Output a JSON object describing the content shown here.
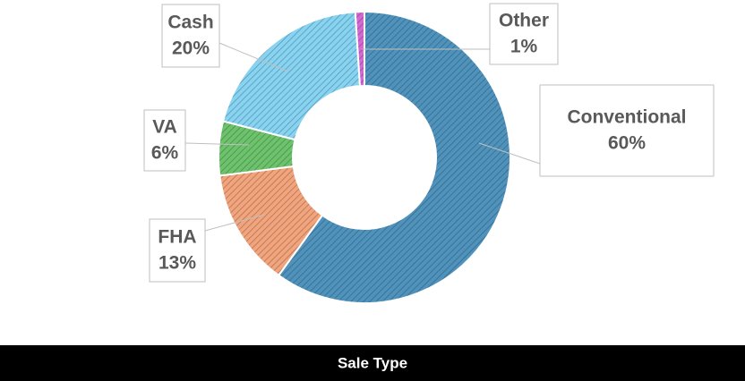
{
  "chart_data": {
    "type": "pie",
    "title": "Sale Type",
    "categories": [
      "Conventional",
      "FHA",
      "VA",
      "Cash",
      "Other"
    ],
    "values": [
      60,
      13,
      6,
      20,
      1
    ],
    "value_labels": [
      "60%",
      "13%",
      "6%",
      "20%",
      "1%"
    ],
    "colors": [
      "#4f93bd",
      "#f2a47c",
      "#6cc36c",
      "#86d3f2",
      "#d36ad3"
    ]
  }
}
